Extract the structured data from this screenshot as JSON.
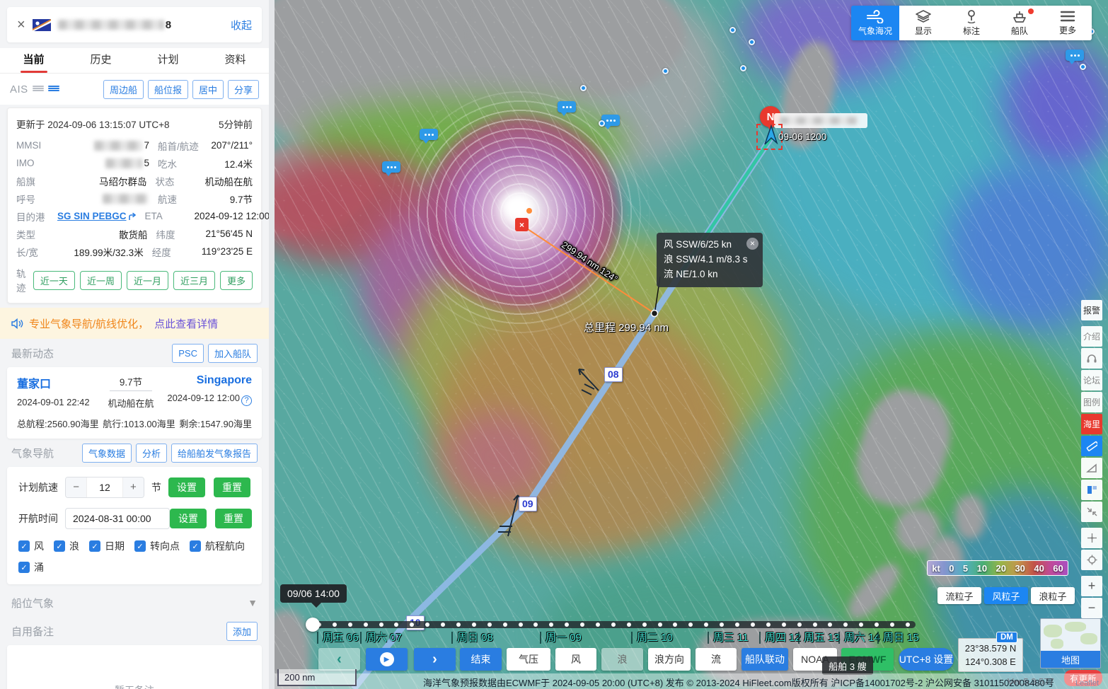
{
  "sidebar": {
    "header": {
      "close": "×",
      "name_tail": "8",
      "collapse": "收起"
    },
    "tabs": [
      {
        "label": "当前",
        "active": true
      },
      {
        "label": "历史"
      },
      {
        "label": "计划"
      },
      {
        "label": "资料"
      }
    ],
    "ais": {
      "label": "AIS",
      "buttons": [
        "周边船",
        "船位报",
        "居中",
        "分享"
      ]
    },
    "updated": {
      "text": "更新于 2024-09-06 13:15:07 UTC+8",
      "ago": "5分钟前"
    },
    "info_rows": [
      {
        "l1": "MMSI",
        "v1": "7",
        "v1blur": 68,
        "l2": "船首/航迹",
        "v2": "207°/211°"
      },
      {
        "l1": "IMO",
        "v1": "5",
        "v1blur": 52,
        "l2": "吃水",
        "v2": "12.4米"
      },
      {
        "l1": "船旗",
        "v1": "马绍尔群岛",
        "l2": "状态",
        "v2": "机动船在航"
      },
      {
        "l1": "呼号",
        "v1": "",
        "v1blur": 64,
        "l2": "航速",
        "v2": "9.7节"
      },
      {
        "l1": "目的港",
        "v1": "SG SIN PEBGC",
        "link": true,
        "icon": "turn-up-icon",
        "l2": "ETA",
        "v2": "2024-09-12 12:00",
        "v2icon": "globe-icon"
      },
      {
        "l1": "类型",
        "v1": "散货船",
        "l2": "纬度",
        "v2": "21°56'45 N"
      },
      {
        "l1": "长/宽",
        "v1": "189.99米/32.3米",
        "l2": "经度",
        "v2": "119°23'25 E"
      }
    ],
    "trail": {
      "label": "轨迹",
      "buttons": [
        "近一天",
        "近一周",
        "近一月",
        "近三月",
        "更多"
      ]
    },
    "promo": {
      "text": "专业气象导航/航线优化，",
      "link": "点此查看详情"
    },
    "latest": {
      "title": "最新动态",
      "buttons": [
        "PSC",
        "加入船队"
      ]
    },
    "voyage": {
      "from": "董家口",
      "from_time": "2024-09-01 22:42",
      "speed": "9.7节",
      "status": "机动船在航",
      "to": "Singapore",
      "to_time": "2024-09-12 12:00",
      "total": "总航程:2560.90海里",
      "sailed": "航行:1013.00海里",
      "remain": "剩余:1547.90海里"
    },
    "weather_nav": {
      "title": "气象导航",
      "buttons": [
        "气象数据",
        "分析",
        "给船舶发气象报告"
      ]
    },
    "plan": {
      "speed_label": "计划航速",
      "minus": "−",
      "speed_value": "12",
      "plus": "+",
      "unit": "节",
      "set": "设置",
      "reset": "重置",
      "depart_label": "开航时间",
      "depart_value": "2024-08-31 00:00",
      "checkboxes": [
        {
          "label": "风",
          "checked": true
        },
        {
          "label": "浪",
          "checked": true
        },
        {
          "label": "日期",
          "checked": true
        },
        {
          "label": "转向点",
          "checked": true
        },
        {
          "label": "航程航向",
          "checked": true
        },
        {
          "label": "涌",
          "checked": true
        }
      ]
    },
    "position_weather": {
      "title": "船位气象"
    },
    "notes": {
      "title": "自用备注",
      "add": "添加",
      "empty": "暂无备注"
    }
  },
  "map": {
    "top_toolbar": [
      {
        "label": "气象海况",
        "icon": "wind-icon",
        "active": true
      },
      {
        "label": "显示",
        "icon": "layers-icon"
      },
      {
        "label": "标注",
        "icon": "pin-icon"
      },
      {
        "label": "船队",
        "icon": "fleet-icon",
        "badge": true
      },
      {
        "label": "更多",
        "icon": "menu-icon"
      }
    ],
    "ship_marker": {
      "pin": "N",
      "time_label": "09-06 1200"
    },
    "tooltip": {
      "lines": [
        "风 SSW/6/25 kn",
        "浪 SSW/4.1 m/8.3 s",
        "流 NE/1.0 kn"
      ],
      "close": "×"
    },
    "measure": {
      "line_label": "299.94 nm 124°",
      "total_label": "总里程 299.94 nm"
    },
    "waypoints": [
      "08",
      "09",
      "10"
    ],
    "time_tooltip": "09/06 14:00",
    "day_labels": [
      "周五 06",
      "周六 07",
      "周日 08",
      "周一 09",
      "周二 10",
      "周三 11",
      "周四 12",
      "周五 13",
      "周六 14",
      "周日 15"
    ],
    "controls": [
      "‹",
      "play",
      "›",
      "结束",
      "气压",
      "风",
      "浪",
      "浪方向",
      "流",
      "船队联动",
      "NOAA",
      "ECMWF",
      "UTC+8 设置"
    ],
    "ships_tip": "船舶 3 艘",
    "legend": {
      "labels": [
        "kt",
        "0",
        "5",
        "10",
        "20",
        "30",
        "40",
        "60"
      ]
    },
    "particles": [
      {
        "label": "流粒子"
      },
      {
        "label": "风粒子",
        "active": true
      },
      {
        "label": "浪粒子"
      }
    ],
    "right_toolbar": [
      {
        "label": "报警",
        "dark": true
      },
      {
        "label": "介绍"
      },
      {
        "icon": "headset-icon"
      },
      {
        "label": "论坛"
      },
      {
        "label": "图例"
      },
      {
        "label": "海里",
        "red": true
      },
      {
        "icon": "ruler-icon",
        "blue": true
      },
      {
        "icon": "protractor-icon"
      },
      {
        "icon": "layout-icon"
      },
      {
        "icon": "shrink-icon"
      },
      {
        "icon": "crosshair-icon"
      },
      {
        "icon": "target-icon"
      },
      {
        "label": "+",
        "zoom": true
      },
      {
        "label": "−",
        "zoom": true
      }
    ],
    "coords": {
      "lat": "23°38.579 N",
      "lon": "124°0.308 E",
      "dm": "DM"
    },
    "minimap_label": "地图",
    "update_badge": "有更新",
    "version": "Ver.5.3.577",
    "leaflet": "Leaflet",
    "scale": "200 nm",
    "status": "海洋气象预报数据由ECWMF于 2024-09-05 20:00 (UTC+8) 发布",
    "copyright": "© 2013-2024 HiFleet.com版权所有 沪ICP备14001702号-2 沪公网安备 31011502008480号"
  }
}
